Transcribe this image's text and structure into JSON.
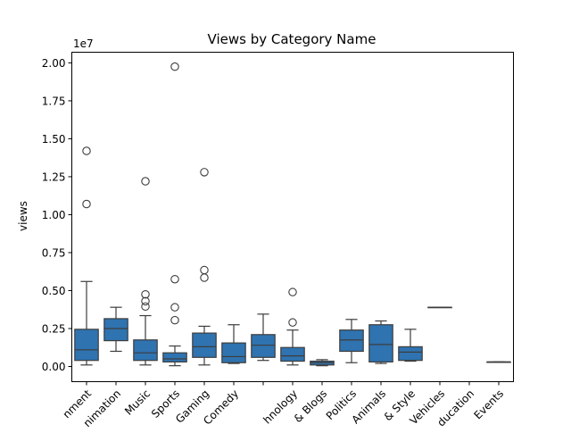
{
  "chart_data": {
    "type": "box",
    "title": "Views by Category Name",
    "xlabel": "",
    "ylabel": "views",
    "y_multiplier_label": "1e7",
    "ylim": [
      -0.1,
      2.07
    ],
    "ytick_values": [
      0.0,
      0.25,
      0.5,
      0.75,
      1.0,
      1.25,
      1.5,
      1.75,
      2.0
    ],
    "ytick_labels": [
      "0.00",
      "0.25",
      "0.50",
      "0.75",
      "1.00",
      "1.25",
      "1.50",
      "1.75",
      "2.00"
    ],
    "categories": [
      "Entertainment",
      "Film & Animation",
      "Music",
      "Sports",
      "Gaming",
      "Comedy",
      "",
      "Science & Technology",
      "People & Blogs",
      "News & Politics",
      "Pets & Animals",
      "Howto & Style",
      "Autos & Vehicles",
      "Education",
      "Nonprofits & Activism Events"
    ],
    "tick_labels_visible": [
      "nment",
      "nimation",
      "Music",
      "Sports",
      "Gaming",
      "Comedy",
      "",
      "hnology",
      "& Blogs",
      "Politics",
      "Animals",
      "& Style",
      "Vehicles",
      "ducation",
      "Events"
    ],
    "box_color": "#2f73b0",
    "edge_color": "#3d3d3d",
    "boxes": [
      {
        "whislo": 0.01,
        "q1": 0.04,
        "med": 0.11,
        "q3": 0.245,
        "whishi": 0.56,
        "fliers": [
          1.42,
          1.07
        ]
      },
      {
        "whislo": 0.1,
        "q1": 0.17,
        "med": 0.25,
        "q3": 0.315,
        "whishi": 0.39,
        "fliers": []
      },
      {
        "whislo": 0.01,
        "q1": 0.04,
        "med": 0.09,
        "q3": 0.175,
        "whishi": 0.335,
        "fliers": [
          1.22,
          0.475,
          0.43,
          0.395
        ]
      },
      {
        "whislo": 0.005,
        "q1": 0.03,
        "med": 0.05,
        "q3": 0.09,
        "whishi": 0.135,
        "fliers": [
          1.975,
          0.575,
          0.39,
          0.305
        ]
      },
      {
        "whislo": 0.01,
        "q1": 0.06,
        "med": 0.13,
        "q3": 0.22,
        "whishi": 0.265,
        "fliers": [
          1.28,
          0.635,
          0.585
        ]
      },
      {
        "whislo": 0.02,
        "q1": 0.025,
        "med": 0.065,
        "q3": 0.155,
        "whishi": 0.275,
        "fliers": []
      },
      {
        "whislo": 0.04,
        "q1": 0.06,
        "med": 0.14,
        "q3": 0.21,
        "whishi": 0.345,
        "fliers": []
      },
      {
        "whislo": 0.01,
        "q1": 0.035,
        "med": 0.07,
        "q3": 0.125,
        "whishi": 0.24,
        "fliers": [
          0.49,
          0.29
        ]
      },
      {
        "whislo": 0.005,
        "q1": 0.01,
        "med": 0.025,
        "q3": 0.035,
        "whishi": 0.045,
        "fliers": []
      },
      {
        "whislo": 0.025,
        "q1": 0.1,
        "med": 0.175,
        "q3": 0.24,
        "whishi": 0.31,
        "fliers": []
      },
      {
        "whislo": 0.02,
        "q1": 0.03,
        "med": 0.145,
        "q3": 0.275,
        "whishi": 0.3,
        "fliers": []
      },
      {
        "whislo": 0.035,
        "q1": 0.04,
        "med": 0.095,
        "q3": 0.13,
        "whishi": 0.245,
        "fliers": []
      },
      {
        "whislo": 0.39,
        "q1": 0.39,
        "med": 0.39,
        "q3": 0.39,
        "whishi": 0.39,
        "fliers": []
      },
      null,
      {
        "whislo": 0.03,
        "q1": 0.03,
        "med": 0.03,
        "q3": 0.03,
        "whishi": 0.03,
        "fliers": []
      }
    ],
    "grid": false,
    "legend": "none"
  }
}
